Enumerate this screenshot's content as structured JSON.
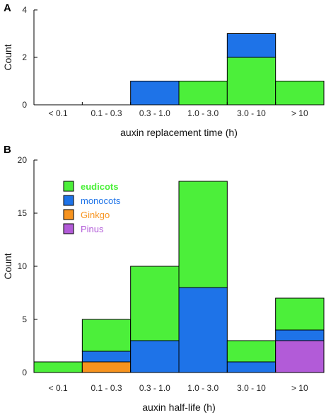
{
  "colors": {
    "eudicots": "#4cef3a",
    "monocots": "#1e73e8",
    "Ginkgo": "#f7931e",
    "Pinus": "#b25bd8",
    "axis": "#000000"
  },
  "chart_data": [
    {
      "type": "bar",
      "stacked": true,
      "panel_label": "A",
      "xlabel": "auxin replacement time (h)",
      "ylabel": "Count",
      "ylim": [
        0,
        4
      ],
      "yticks": [
        0,
        2,
        4
      ],
      "categories": [
        "< 0.1",
        "0.1 - 0.3",
        "0.3 - 1.0",
        "1.0 - 3.0",
        "3.0 - 10",
        "> 10"
      ],
      "series": [
        {
          "name": "eudicots",
          "values": [
            0,
            0,
            0,
            1,
            2,
            1
          ]
        },
        {
          "name": "monocots",
          "values": [
            0,
            0,
            1,
            0,
            1,
            0
          ]
        }
      ]
    },
    {
      "type": "bar",
      "stacked": true,
      "panel_label": "B",
      "xlabel": "auxin half-life (h)",
      "ylabel": "Count",
      "ylim": [
        0,
        20
      ],
      "yticks": [
        0,
        5,
        10,
        15,
        20
      ],
      "categories": [
        "< 0.1",
        "0.1 - 0.3",
        "0.3 - 1.0",
        "1.0 - 3.0",
        "3.0 - 10",
        "> 10"
      ],
      "legend_position": "top-left",
      "series": [
        {
          "name": "Pinus",
          "values": [
            0,
            0,
            0,
            0,
            0,
            3
          ]
        },
        {
          "name": "Ginkgo",
          "values": [
            0,
            1,
            0,
            0,
            0,
            0
          ]
        },
        {
          "name": "monocots",
          "values": [
            0,
            1,
            3,
            8,
            1,
            1
          ]
        },
        {
          "name": "eudicots",
          "values": [
            1,
            3,
            7,
            10,
            2,
            3
          ]
        }
      ],
      "legend": [
        "eudicots",
        "monocots",
        "Ginkgo",
        "Pinus"
      ]
    }
  ]
}
